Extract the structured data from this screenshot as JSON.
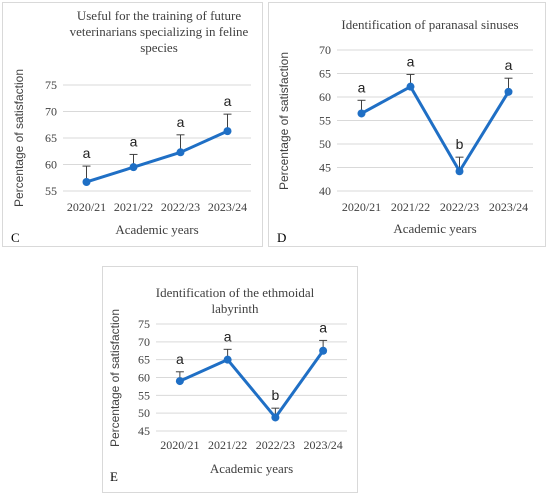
{
  "style": {
    "line_color": "#1f6fc5",
    "grid_color": "#d9d9d9",
    "error_bar_color": "#404040"
  },
  "chart_data": [
    {
      "id": "c",
      "panel_letter": "C",
      "type": "line",
      "title_lines": [
        "Useful for the training of future",
        "veterinarians specializing in feline",
        "species"
      ],
      "xlabel": "Academic years",
      "ylabel": "Percentage of satisfaction",
      "categories": [
        "2020/21",
        "2021/22",
        "2022/23",
        "2023/24"
      ],
      "values": [
        56.7,
        59.5,
        62.3,
        66.3
      ],
      "error_upper": [
        3.0,
        2.4,
        3.3,
        3.2
      ],
      "significance": [
        "a",
        "a",
        "a",
        "a"
      ],
      "ylim": [
        55,
        75
      ],
      "yticks": [
        55,
        60,
        65,
        70,
        75
      ],
      "grid": true
    },
    {
      "id": "d",
      "panel_letter": "D",
      "type": "line",
      "title_lines": [
        "Identification of paranasal sinuses"
      ],
      "xlabel": "Academic years",
      "ylabel": "Percentage of satisfaction",
      "categories": [
        "2020/21",
        "2021/22",
        "2022/23",
        "2023/24"
      ],
      "values": [
        56.5,
        62.2,
        44.2,
        61.1
      ],
      "error_upper": [
        2.8,
        2.6,
        3.0,
        2.9
      ],
      "significance": [
        "a",
        "a",
        "b",
        "a"
      ],
      "ylim": [
        40,
        70
      ],
      "yticks": [
        40,
        45,
        50,
        55,
        60,
        65,
        70
      ],
      "grid": true
    },
    {
      "id": "e",
      "panel_letter": "E",
      "type": "line",
      "title_lines": [
        "Identification of the ethmoidal",
        "labyrinth"
      ],
      "xlabel": "Academic years",
      "ylabel": "Percentage of satisfaction",
      "categories": [
        "2020/21",
        "2021/22",
        "2022/23",
        "2023/24"
      ],
      "values": [
        59.0,
        65.0,
        48.8,
        67.5
      ],
      "error_upper": [
        2.6,
        2.9,
        2.6,
        2.9
      ],
      "significance": [
        "a",
        "a",
        "b",
        "a"
      ],
      "ylim": [
        45,
        75
      ],
      "yticks": [
        45,
        50,
        55,
        60,
        65,
        70,
        75
      ],
      "grid": true
    }
  ]
}
